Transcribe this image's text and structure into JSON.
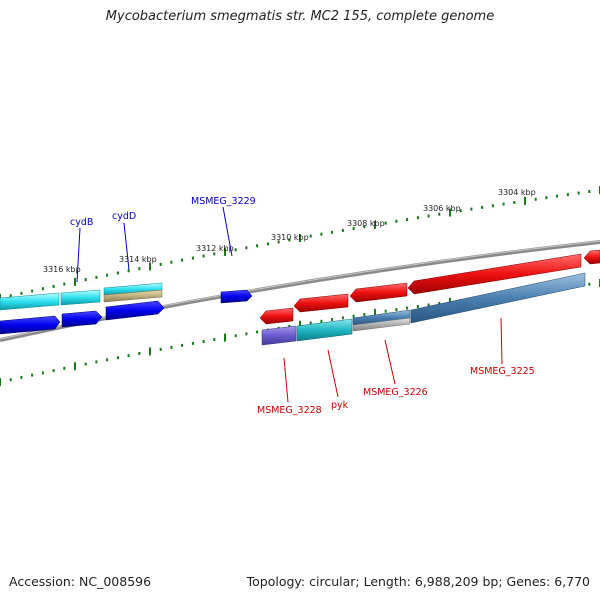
{
  "title": "Mycobacterium smegmatis str. MC2 155, complete genome",
  "footer": {
    "accession": "Accession: NC_008596",
    "topology": "Topology: circular; Length: 6,988,209 bp; Genes: 6,770"
  },
  "colors": {
    "backbone": "#7a7a7a",
    "tick": "#1a7a1a",
    "label_forward": "#0000cc",
    "label_reverse": "#cc0000",
    "gene_blue": "#0a0aee",
    "gene_cyan": "#2fe0ee",
    "gene_red": "#ee1111",
    "feature_teal": "#20b8c4",
    "feature_steel": "#4a80b0",
    "feature_purple": "#6a5acd",
    "feature_olive": "#c0b080",
    "feature_gray": "#b0b0b0"
  },
  "tick_labels": [
    "3316 kbp",
    "3314 kbp",
    "3312 kbp",
    "3310 kbp",
    "3308 kbp",
    "3306 kbp",
    "3304 kbp"
  ],
  "gene_labels": {
    "cydB": "cydB",
    "cydD": "cydD",
    "msmeg_3229": "MSMEG_3229",
    "msmeg_3228": "MSMEG_3228",
    "pyk": "pyk",
    "msmeg_3226": "MSMEG_3226",
    "msmeg_3225": "MSMEG_3225"
  }
}
